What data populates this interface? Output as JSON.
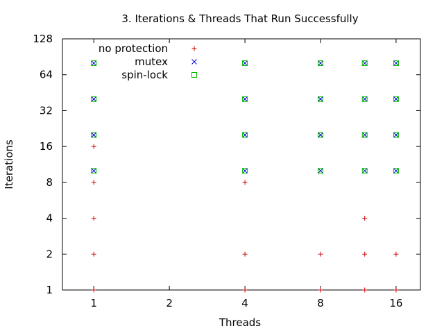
{
  "chart_data": {
    "type": "scatter",
    "title": "3. Iterations & Threads That Run Successfully",
    "xlabel": "Threads",
    "ylabel": "Iterations",
    "x_scale": "log2",
    "y_scale": "log2",
    "xlim": [
      0.75,
      20
    ],
    "ylim": [
      1,
      128
    ],
    "xticks": [
      1,
      2,
      4,
      8,
      16
    ],
    "yticks": [
      1,
      2,
      4,
      8,
      16,
      32,
      64,
      128
    ],
    "grid": false,
    "legend_position": "top-left",
    "series": [
      {
        "name": "no protection",
        "marker": "plus",
        "color": "#cc0000",
        "points": [
          [
            1,
            1
          ],
          [
            1,
            2
          ],
          [
            1,
            4
          ],
          [
            1,
            8
          ],
          [
            1,
            16
          ],
          [
            4,
            1
          ],
          [
            4,
            2
          ],
          [
            4,
            8
          ],
          [
            8,
            1
          ],
          [
            8,
            2
          ],
          [
            12,
            1
          ],
          [
            12,
            2
          ],
          [
            12,
            4
          ],
          [
            16,
            1
          ],
          [
            16,
            2
          ]
        ]
      },
      {
        "name": "mutex",
        "marker": "cross",
        "color": "#0000cc",
        "points": [
          [
            1,
            10
          ],
          [
            1,
            20
          ],
          [
            1,
            40
          ],
          [
            1,
            80
          ],
          [
            4,
            10
          ],
          [
            4,
            20
          ],
          [
            4,
            40
          ],
          [
            4,
            80
          ],
          [
            8,
            10
          ],
          [
            8,
            20
          ],
          [
            8,
            40
          ],
          [
            8,
            80
          ],
          [
            12,
            10
          ],
          [
            12,
            20
          ],
          [
            12,
            40
          ],
          [
            12,
            80
          ],
          [
            16,
            10
          ],
          [
            16,
            20
          ],
          [
            16,
            40
          ],
          [
            16,
            80
          ]
        ]
      },
      {
        "name": "spin-lock",
        "marker": "square",
        "color": "#00bb00",
        "points": [
          [
            1,
            10
          ],
          [
            1,
            20
          ],
          [
            1,
            40
          ],
          [
            1,
            80
          ],
          [
            4,
            10
          ],
          [
            4,
            20
          ],
          [
            4,
            40
          ],
          [
            4,
            80
          ],
          [
            8,
            10
          ],
          [
            8,
            20
          ],
          [
            8,
            40
          ],
          [
            8,
            80
          ],
          [
            12,
            10
          ],
          [
            12,
            20
          ],
          [
            12,
            40
          ],
          [
            12,
            80
          ],
          [
            16,
            10
          ],
          [
            16,
            20
          ],
          [
            16,
            40
          ],
          [
            16,
            80
          ]
        ]
      }
    ]
  }
}
